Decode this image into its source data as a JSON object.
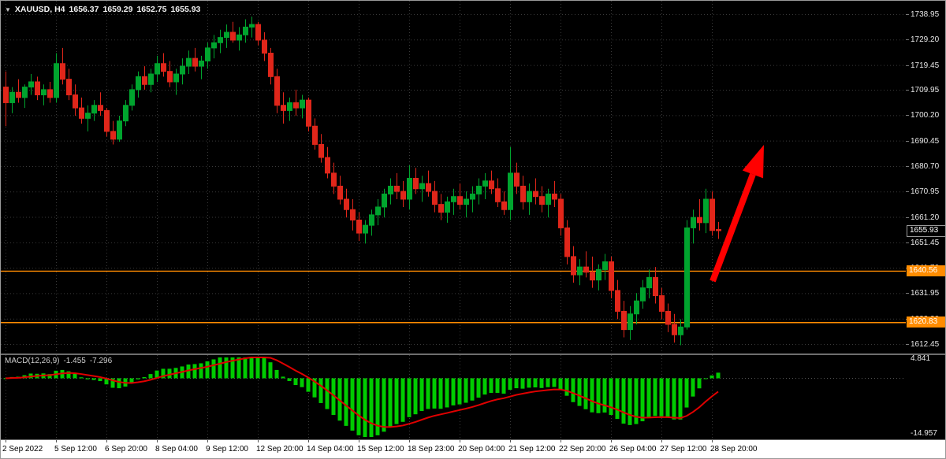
{
  "header": {
    "symbol_icon": "triangle-down-icon",
    "symbol": "XAUUSD, H4",
    "open": "1656.37",
    "high": "1659.29",
    "low": "1652.75",
    "close": "1655.93"
  },
  "colors": {
    "background": "#000000",
    "grid": "#3a3a3a",
    "bull": "#00a42e",
    "bear": "#e0261a",
    "axis_text": "#e8e8e8",
    "time_strip_bg": "#ffffff",
    "zero_line": "#585858"
  },
  "chart_data": {
    "type": "candlestick",
    "symbol": "XAUUSD",
    "timeframe": "H4",
    "price_axis": {
      "ticks": [
        "1738.95",
        "1729.20",
        "1719.45",
        "1709.95",
        "1700.20",
        "1690.45",
        "1680.70",
        "1670.95",
        "1661.20",
        "1651.45",
        "1641.70",
        "1631.95",
        "1622.20",
        "1612.45"
      ]
    },
    "time_axis": {
      "labels": [
        "2 Sep 2022",
        "5 Sep 12:00",
        "6 Sep 20:00",
        "8 Sep 04:00",
        "9 Sep 12:00",
        "12 Sep 20:00",
        "14 Sep 04:00",
        "15 Sep 12:00",
        "18 Sep 23:00",
        "20 Sep 04:00",
        "21 Sep 12:00",
        "22 Sep 20:00",
        "26 Sep 04:00",
        "27 Sep 12:00",
        "28 Sep 20:00"
      ],
      "bars_per_label": 8
    },
    "candles": [
      [
        1711,
        1717,
        1696,
        1705
      ],
      [
        1705,
        1711,
        1701,
        1709
      ],
      [
        1709,
        1714,
        1705,
        1707
      ],
      [
        1707,
        1712,
        1703,
        1711
      ],
      [
        1711,
        1716,
        1708,
        1713
      ],
      [
        1713,
        1715,
        1706,
        1708
      ],
      [
        1708,
        1712,
        1704,
        1710
      ],
      [
        1710,
        1713,
        1705,
        1707
      ],
      [
        1707,
        1724,
        1705,
        1720
      ],
      [
        1720,
        1726,
        1712,
        1714
      ],
      [
        1714,
        1718,
        1706,
        1708
      ],
      [
        1708,
        1712,
        1700,
        1703
      ],
      [
        1703,
        1707,
        1697,
        1699
      ],
      [
        1699,
        1704,
        1694,
        1701
      ],
      [
        1701,
        1706,
        1698,
        1704
      ],
      [
        1704,
        1709,
        1700,
        1702
      ],
      [
        1702,
        1703,
        1692,
        1694
      ],
      [
        1694,
        1698,
        1689,
        1691
      ],
      [
        1691,
        1700,
        1690,
        1698
      ],
      [
        1698,
        1706,
        1696,
        1704
      ],
      [
        1704,
        1712,
        1702,
        1710
      ],
      [
        1710,
        1717,
        1707,
        1715
      ],
      [
        1715,
        1719,
        1710,
        1712
      ],
      [
        1712,
        1718,
        1709,
        1716
      ],
      [
        1716,
        1723,
        1713,
        1720
      ],
      [
        1720,
        1724,
        1715,
        1717
      ],
      [
        1717,
        1721,
        1711,
        1713
      ],
      [
        1713,
        1718,
        1708,
        1716
      ],
      [
        1716,
        1722,
        1712,
        1719
      ],
      [
        1719,
        1725,
        1716,
        1722
      ],
      [
        1722,
        1726,
        1717,
        1719
      ],
      [
        1719,
        1723,
        1714,
        1721
      ],
      [
        1721,
        1728,
        1718,
        1726
      ],
      [
        1726,
        1731,
        1722,
        1728
      ],
      [
        1728,
        1733,
        1724,
        1730
      ],
      [
        1730,
        1735,
        1726,
        1732
      ],
      [
        1732,
        1736,
        1728,
        1729
      ],
      [
        1729,
        1734,
        1725,
        1731
      ],
      [
        1731,
        1737,
        1728,
        1734
      ],
      [
        1734,
        1738,
        1730,
        1735
      ],
      [
        1735,
        1736,
        1727,
        1729
      ],
      [
        1729,
        1732,
        1721,
        1724
      ],
      [
        1724,
        1726,
        1712,
        1715
      ],
      [
        1715,
        1718,
        1701,
        1704
      ],
      [
        1704,
        1709,
        1697,
        1702
      ],
      [
        1702,
        1707,
        1698,
        1705
      ],
      [
        1705,
        1710,
        1700,
        1703
      ],
      [
        1703,
        1708,
        1699,
        1706
      ],
      [
        1706,
        1707,
        1694,
        1696
      ],
      [
        1696,
        1699,
        1687,
        1689
      ],
      [
        1689,
        1693,
        1682,
        1684
      ],
      [
        1684,
        1688,
        1676,
        1678
      ],
      [
        1678,
        1682,
        1670,
        1673
      ],
      [
        1673,
        1677,
        1666,
        1668
      ],
      [
        1668,
        1672,
        1661,
        1664
      ],
      [
        1664,
        1668,
        1656,
        1660
      ],
      [
        1660,
        1663,
        1652,
        1655
      ],
      [
        1655,
        1660,
        1651,
        1658
      ],
      [
        1658,
        1664,
        1654,
        1662
      ],
      [
        1662,
        1668,
        1658,
        1665
      ],
      [
        1665,
        1672,
        1661,
        1670
      ],
      [
        1670,
        1676,
        1666,
        1673
      ],
      [
        1673,
        1678,
        1668,
        1671
      ],
      [
        1671,
        1675,
        1665,
        1668
      ],
      [
        1668,
        1681,
        1664,
        1676
      ],
      [
        1676,
        1680,
        1670,
        1672
      ],
      [
        1672,
        1677,
        1667,
        1674
      ],
      [
        1674,
        1679,
        1669,
        1671
      ],
      [
        1671,
        1675,
        1663,
        1666
      ],
      [
        1666,
        1670,
        1660,
        1663
      ],
      [
        1663,
        1669,
        1659,
        1667
      ],
      [
        1667,
        1672,
        1662,
        1669
      ],
      [
        1669,
        1674,
        1664,
        1666
      ],
      [
        1666,
        1671,
        1661,
        1668
      ],
      [
        1668,
        1673,
        1663,
        1670
      ],
      [
        1670,
        1676,
        1666,
        1673
      ],
      [
        1673,
        1678,
        1668,
        1675
      ],
      [
        1675,
        1679,
        1670,
        1672
      ],
      [
        1672,
        1676,
        1665,
        1667
      ],
      [
        1667,
        1671,
        1662,
        1664
      ],
      [
        1664,
        1688,
        1660,
        1678
      ],
      [
        1678,
        1682,
        1670,
        1673
      ],
      [
        1673,
        1677,
        1664,
        1667
      ],
      [
        1667,
        1674,
        1662,
        1671
      ],
      [
        1671,
        1676,
        1666,
        1669
      ],
      [
        1669,
        1673,
        1663,
        1666
      ],
      [
        1666,
        1672,
        1661,
        1670
      ],
      [
        1670,
        1675,
        1665,
        1668
      ],
      [
        1668,
        1670,
        1654,
        1657
      ],
      [
        1657,
        1660,
        1643,
        1646
      ],
      [
        1646,
        1650,
        1636,
        1639
      ],
      [
        1639,
        1645,
        1635,
        1642
      ],
      [
        1642,
        1648,
        1638,
        1640
      ],
      [
        1640,
        1646,
        1634,
        1637
      ],
      [
        1637,
        1643,
        1633,
        1641
      ],
      [
        1641,
        1647,
        1637,
        1644
      ],
      [
        1644,
        1646,
        1630,
        1633
      ],
      [
        1633,
        1637,
        1622,
        1625
      ],
      [
        1625,
        1629,
        1615,
        1618
      ],
      [
        1618,
        1627,
        1614,
        1624
      ],
      [
        1624,
        1632,
        1620,
        1629
      ],
      [
        1629,
        1637,
        1626,
        1634
      ],
      [
        1634,
        1641,
        1630,
        1638
      ],
      [
        1638,
        1642,
        1628,
        1631
      ],
      [
        1631,
        1634,
        1622,
        1625
      ],
      [
        1625,
        1628,
        1617,
        1620
      ],
      [
        1620,
        1624,
        1613,
        1616
      ],
      [
        1616,
        1622,
        1612,
        1619
      ],
      [
        1619,
        1660,
        1618,
        1657
      ],
      [
        1657,
        1664,
        1651,
        1661
      ],
      [
        1661,
        1668,
        1656,
        1659
      ],
      [
        1659,
        1672,
        1655,
        1668
      ],
      [
        1668,
        1671,
        1654,
        1656
      ],
      [
        1656.37,
        1659.29,
        1652.75,
        1655.93
      ]
    ],
    "horizontal_lines": [
      {
        "price": 1640.56,
        "label": "1640.56",
        "color": "#FF8C00"
      },
      {
        "price": 1620.83,
        "label": "1620.83",
        "color": "#FF8C00"
      }
    ],
    "current_price": {
      "value": 1655.93,
      "label": "1655.93"
    },
    "annotation_arrow": {
      "from": [
        903,
        356
      ],
      "to": [
        968,
        183
      ],
      "color": "#ff0000",
      "direction": "up-right"
    },
    "macd": {
      "label": "MACD(12,26,9)",
      "value_main": "-1.455",
      "value_signal": "-7.296",
      "params": [
        12,
        26,
        9
      ],
      "axis_max": "4.841",
      "axis_min": "-14.957",
      "histogram_color": "#00cc00",
      "signal_color": "#e00000"
    }
  }
}
